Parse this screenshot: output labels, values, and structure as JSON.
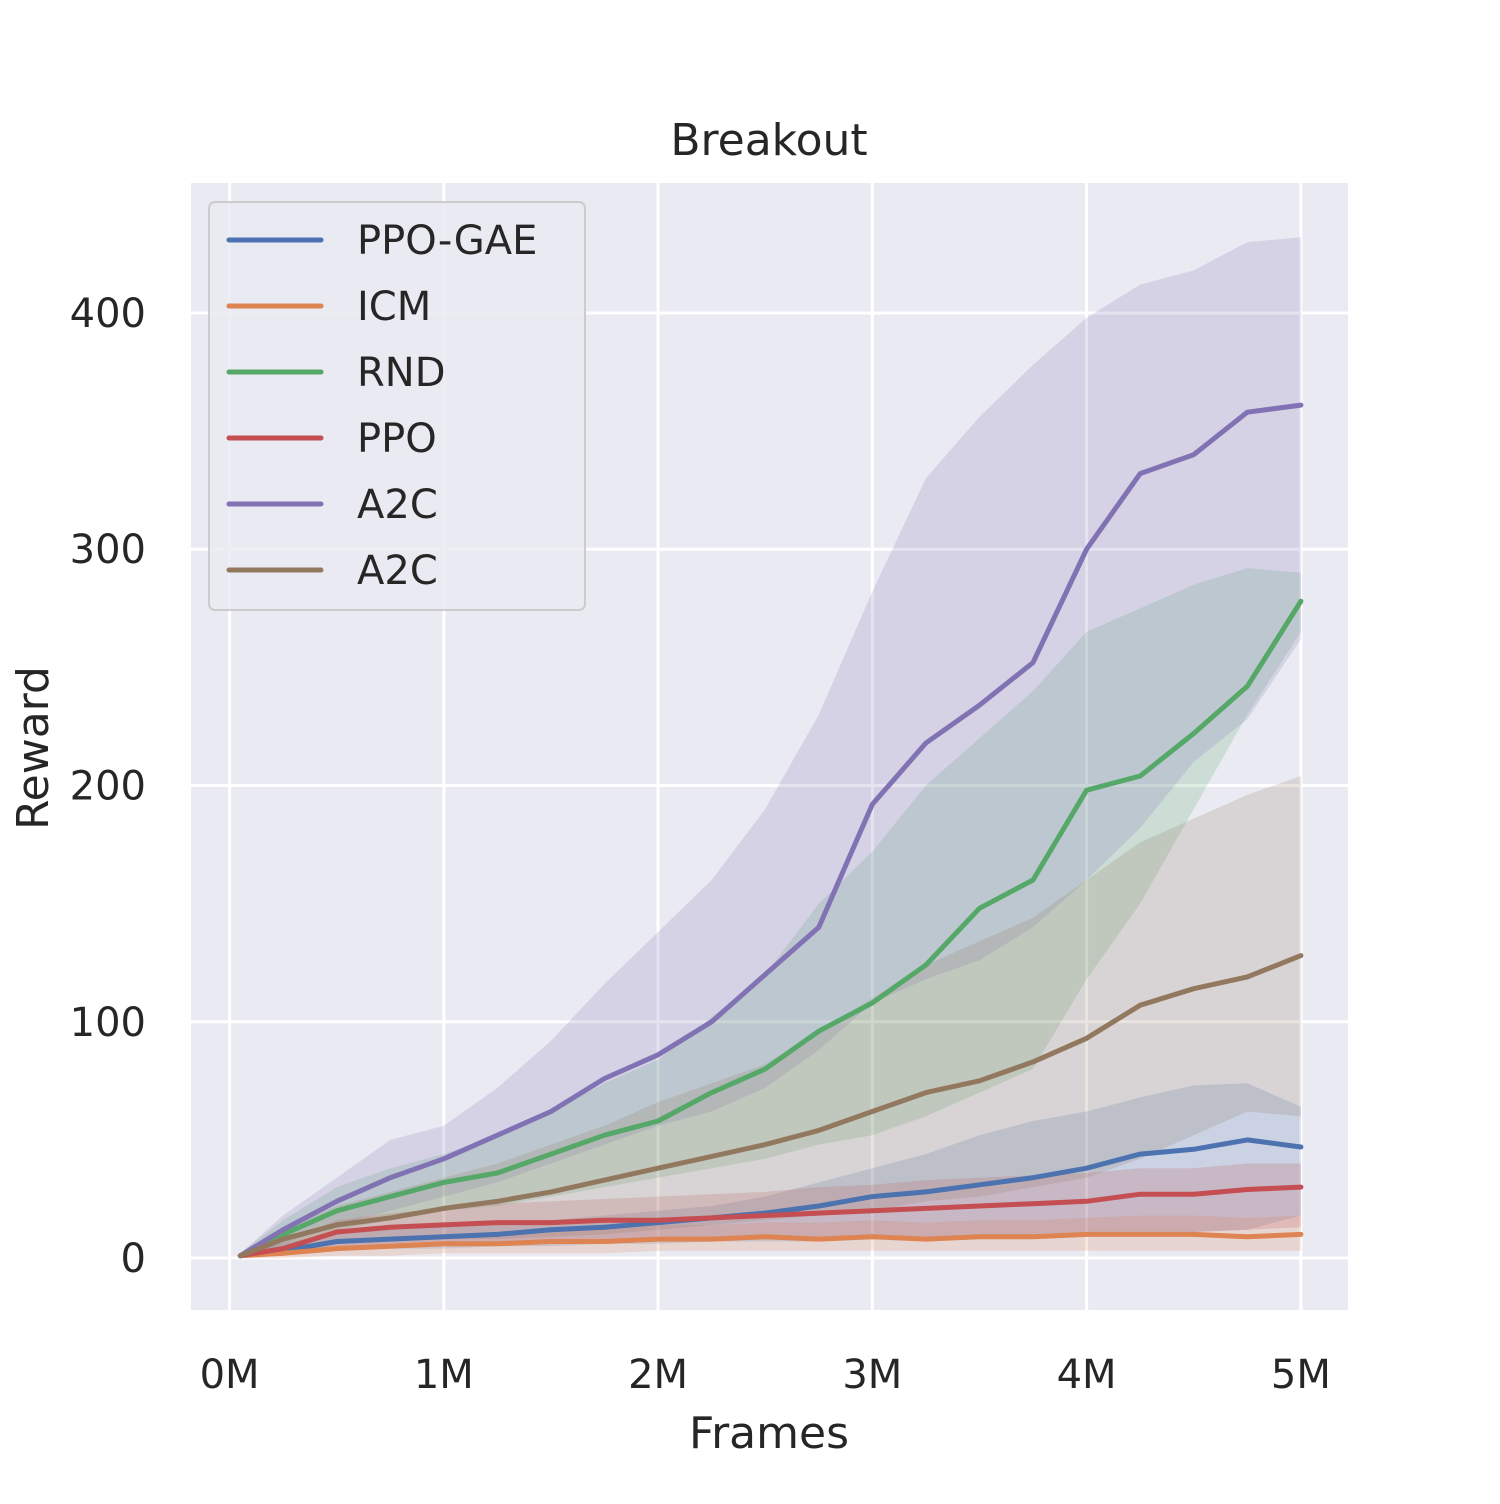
{
  "chart_data": {
    "type": "line",
    "title": "Breakout",
    "xlabel": "Frames",
    "ylabel": "Reward",
    "xlim": [
      -0.18,
      5.22
    ],
    "ylim": [
      -22,
      455
    ],
    "xticks": [
      0,
      1,
      2,
      3,
      4,
      5
    ],
    "xtick_labels": [
      "0M",
      "1M",
      "2M",
      "3M",
      "4M",
      "5M"
    ],
    "yticks": [
      0,
      100,
      200,
      300,
      400
    ],
    "ytick_labels": [
      "0",
      "100",
      "200",
      "300",
      "400"
    ],
    "grid": true,
    "legend_position": "upper-left",
    "x": [
      0.05,
      0.25,
      0.5,
      0.75,
      1.0,
      1.25,
      1.5,
      1.75,
      2.0,
      2.25,
      2.5,
      2.75,
      3.0,
      3.25,
      3.5,
      3.75,
      4.0,
      4.25,
      4.5,
      4.75,
      5.0
    ],
    "series": [
      {
        "name": "PPO-GAE",
        "color": "#4c72b0",
        "mean": [
          1,
          3,
          7,
          8,
          9,
          10,
          12,
          13,
          15,
          17,
          19,
          22,
          26,
          28,
          31,
          34,
          38,
          44,
          46,
          50,
          47
        ],
        "lower": [
          0,
          1,
          3,
          4,
          4,
          5,
          5,
          6,
          6,
          7,
          7,
          7,
          8,
          8,
          9,
          9,
          10,
          10,
          11,
          12,
          18
        ],
        "upper": [
          2,
          6,
          11,
          12,
          13,
          14,
          16,
          18,
          20,
          22,
          26,
          32,
          38,
          44,
          52,
          58,
          62,
          68,
          73,
          74,
          64
        ]
      },
      {
        "name": "ICM",
        "color": "#dd8452",
        "mean": [
          1,
          2,
          4,
          5,
          6,
          6,
          7,
          7,
          8,
          8,
          9,
          8,
          9,
          8,
          9,
          9,
          10,
          10,
          10,
          9,
          10
        ],
        "lower": [
          0,
          0,
          1,
          1,
          2,
          2,
          2,
          2,
          3,
          3,
          3,
          3,
          3,
          3,
          3,
          3,
          3,
          3,
          3,
          3,
          3
        ],
        "upper": [
          2,
          4,
          7,
          9,
          10,
          11,
          12,
          13,
          14,
          14,
          15,
          15,
          16,
          15,
          16,
          16,
          17,
          18,
          18,
          17,
          18
        ]
      },
      {
        "name": "RND",
        "color": "#55a868",
        "mean": [
          1,
          10,
          20,
          26,
          32,
          36,
          44,
          52,
          58,
          70,
          80,
          96,
          108,
          124,
          148,
          160,
          198,
          204,
          222,
          242,
          278
        ],
        "lower": [
          0,
          5,
          12,
          16,
          20,
          22,
          26,
          30,
          34,
          38,
          42,
          48,
          52,
          60,
          70,
          80,
          118,
          150,
          190,
          230,
          265
        ],
        "upper": [
          2,
          16,
          30,
          38,
          44,
          52,
          62,
          74,
          84,
          102,
          120,
          150,
          172,
          200,
          220,
          240,
          265,
          275,
          285,
          292,
          290
        ]
      },
      {
        "name": "PPO",
        "color": "#c44e52",
        "mean": [
          1,
          4,
          11,
          13,
          14,
          15,
          15,
          16,
          16,
          17,
          18,
          19,
          20,
          21,
          22,
          23,
          24,
          27,
          27,
          29,
          30
        ],
        "lower": [
          0,
          1,
          4,
          6,
          6,
          6,
          7,
          7,
          7,
          8,
          8,
          8,
          9,
          9,
          10,
          10,
          11,
          11,
          11,
          12,
          13
        ],
        "upper": [
          2,
          7,
          16,
          19,
          21,
          23,
          24,
          25,
          26,
          27,
          28,
          30,
          31,
          33,
          34,
          35,
          36,
          38,
          38,
          40,
          40
        ]
      },
      {
        "name": "A2C",
        "color": "#8172b3",
        "mean": [
          1,
          12,
          24,
          34,
          42,
          52,
          62,
          76,
          86,
          100,
          120,
          140,
          192,
          218,
          234,
          252,
          300,
          332,
          340,
          358,
          361
        ],
        "lower": [
          0,
          6,
          14,
          20,
          26,
          32,
          40,
          48,
          56,
          62,
          72,
          88,
          108,
          118,
          126,
          140,
          160,
          182,
          210,
          228,
          262
        ],
        "upper": [
          2,
          18,
          34,
          50,
          56,
          72,
          92,
          116,
          138,
          160,
          190,
          230,
          282,
          330,
          356,
          378,
          398,
          412,
          418,
          430,
          432
        ]
      },
      {
        "name": "A2C",
        "color": "#937860",
        "mean": [
          1,
          8,
          14,
          17,
          21,
          24,
          28,
          33,
          38,
          43,
          48,
          54,
          62,
          70,
          75,
          83,
          93,
          107,
          114,
          119,
          128
        ],
        "lower": [
          0,
          3,
          6,
          7,
          8,
          8,
          9,
          10,
          12,
          14,
          16,
          18,
          20,
          24,
          26,
          30,
          34,
          42,
          52,
          62,
          60
        ],
        "upper": [
          2,
          12,
          22,
          28,
          34,
          40,
          48,
          56,
          66,
          74,
          82,
          96,
          110,
          124,
          134,
          144,
          160,
          176,
          186,
          196,
          204
        ]
      }
    ]
  }
}
